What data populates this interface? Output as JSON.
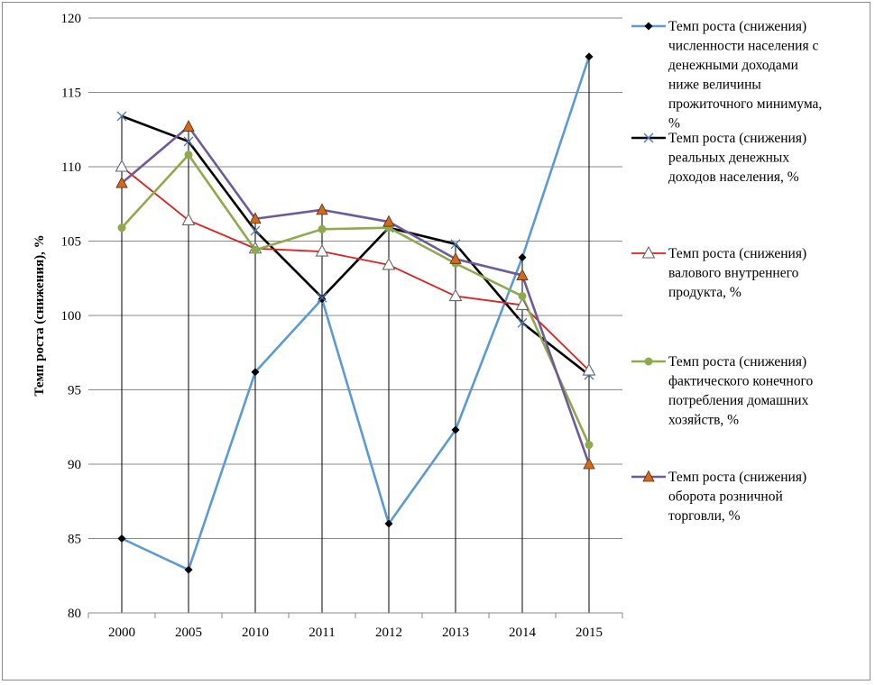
{
  "chart_data": {
    "type": "line",
    "title": "",
    "xlabel": "",
    "ylabel": "Темп роста (снижения), %",
    "categories": [
      "2000",
      "2005",
      "2010",
      "2011",
      "2012",
      "2013",
      "2014",
      "2015"
    ],
    "ylim": [
      80,
      120
    ],
    "yticks": [
      80,
      85,
      90,
      95,
      100,
      105,
      110,
      115,
      120
    ],
    "grid": true,
    "legend_position": "right",
    "series": [
      {
        "name": "Темп роста (снижения) численности населения с денежными доходами ниже величины прожиточного минимума, %",
        "legend_lines": [
          "Темп роста (снижения)",
          "численности населения с",
          "денежными доходами",
          "ниже величины",
          "прожиточного минимума,",
          "%"
        ],
        "color": "#5b9bd5",
        "marker": "diamond",
        "marker_color": "#000000",
        "values": [
          85.0,
          82.9,
          96.2,
          101.1,
          86.0,
          92.3,
          103.9,
          117.4
        ]
      },
      {
        "name": "Темп роста (снижения) реальных денежных доходов населения, %",
        "legend_lines": [
          "Темп роста (снижения)",
          "реальных денежных",
          "доходов населения, %"
        ],
        "color": "#000000",
        "marker": "x",
        "marker_color": "#4a7ab8",
        "values": [
          113.4,
          111.7,
          105.7,
          101.2,
          105.9,
          104.8,
          99.5,
          96.0
        ]
      },
      {
        "name": "Темп роста (снижения) валового внутреннего продукта, %",
        "legend_lines": [
          "Темп роста (снижения)",
          "валового внутреннего",
          "продукта, %"
        ],
        "color": "#e01f1f",
        "marker": "triangle-open",
        "marker_color": "#666666",
        "values": [
          110.0,
          106.4,
          104.5,
          104.3,
          103.4,
          101.3,
          100.7,
          96.3
        ]
      },
      {
        "name": "Темп роста (снижения) фактического конечного потребления домашних хозяйств, %",
        "legend_lines": [
          "Темп роста (снижения)",
          "фактического  конечного",
          "потребления домашних",
          "хозяйств, %"
        ],
        "color": "#8faa4a",
        "marker": "circle",
        "marker_color": "#8faa4a",
        "values": [
          105.9,
          110.8,
          104.4,
          105.8,
          105.9,
          103.5,
          101.3,
          91.3
        ]
      },
      {
        "name": "Темп роста (снижения) оборота розничной торговли, %",
        "legend_lines": [
          "Темп роста (снижения)",
          "оборота розничной",
          "торговли, %"
        ],
        "color": "#6e5a9a",
        "marker": "triangle-filled",
        "marker_color": "#d26a1e",
        "values": [
          108.9,
          112.7,
          106.5,
          107.1,
          106.3,
          103.8,
          102.7,
          90.0
        ]
      }
    ]
  }
}
